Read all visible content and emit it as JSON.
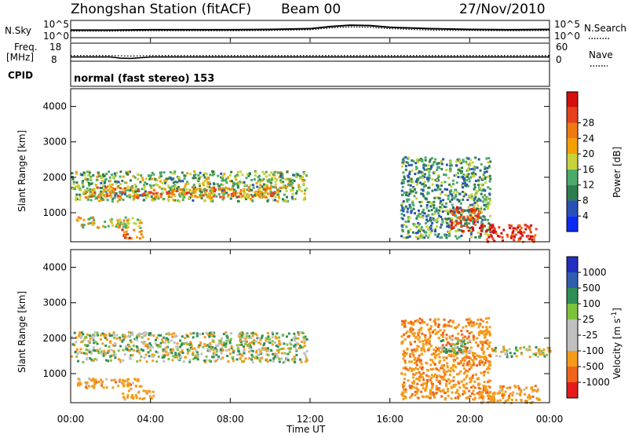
{
  "header": {
    "station_title": "Zhongshan Station (fitACF)",
    "beam": "Beam 00",
    "date": "27/Nov/2010"
  },
  "noise_panel": {
    "left_label": "N.Sky",
    "left_tick_top": "10^5",
    "left_tick_bottom": "10^0",
    "right_label": "N.Search",
    "right_tick_top": "10^5",
    "right_tick_bottom": "10^0"
  },
  "freq_panel": {
    "left_label_line1": "Freq.",
    "left_label_line2": "[MHz]",
    "left_tick_top": "18",
    "left_tick_bottom": "8",
    "right_label": "Nave",
    "right_tick_top": "60",
    "right_tick_bottom": "0"
  },
  "cpid_panel": {
    "label": "CPID",
    "text": "normal (fast stereo) 153"
  },
  "colors": {
    "power_scale": [
      "#0b2bf2",
      "#2a50b8",
      "#2e7d4f",
      "#4caa6a",
      "#c7d33a",
      "#f2a100",
      "#f07a12",
      "#e5411f",
      "#d70e0e"
    ],
    "velocity_scale": [
      "#e51b1b",
      "#f0651c",
      "#f59b1a",
      "#c0c0c0",
      "#c0c0c0",
      "#7ec23c",
      "#2f8f57",
      "#2f5eb0",
      "#1f2fc0"
    ]
  },
  "chart_data": [
    {
      "type": "line",
      "panel": "noise",
      "title": "",
      "x": [
        "00:00",
        "02:00",
        "04:00",
        "06:00",
        "08:00",
        "10:00",
        "12:00",
        "13:00",
        "14:00",
        "15:00",
        "16:00",
        "17:00",
        "18:00",
        "19:00",
        "20:00",
        "22:00",
        "24:00"
      ],
      "series": [
        {
          "name": "N.Sky",
          "values": [
            2.2,
            2.2,
            2.3,
            2.3,
            2.3,
            2.4,
            2.6,
            3.2,
            3.6,
            3.5,
            3.0,
            2.8,
            2.6,
            2.5,
            2.4,
            2.3,
            2.4
          ]
        },
        {
          "name": "N.Search",
          "values": [
            1.9,
            1.9,
            2.0,
            2.0,
            2.0,
            2.1,
            2.3,
            2.8,
            3.1,
            3.0,
            2.6,
            2.4,
            2.2,
            2.1,
            2.1,
            2.0,
            2.1
          ]
        }
      ],
      "ylim": [
        0,
        5
      ],
      "yscale": "log"
    },
    {
      "type": "line",
      "panel": "frequency",
      "x": [
        "00:00",
        "02:00",
        "02:30",
        "03:00",
        "04:00",
        "08:00",
        "12:00",
        "16:00",
        "20:00",
        "24:00"
      ],
      "series": [
        {
          "name": "Freq.",
          "values": [
            10.1,
            10.1,
            9.4,
            9.2,
            10.1,
            10.1,
            10.1,
            10.1,
            10.1,
            10.1
          ]
        },
        {
          "name": "Nave",
          "values": [
            18,
            18,
            17,
            16,
            18,
            18,
            18,
            18,
            18,
            18
          ]
        }
      ],
      "ylim": [
        8,
        18
      ],
      "y2lim": [
        0,
        60
      ]
    },
    {
      "type": "heatmap",
      "panel": "power",
      "xlabel": "",
      "ylabel": "Slant Range [km]",
      "yticks": [
        "1000",
        "2000",
        "3000",
        "4000"
      ],
      "ylim": [
        180,
        4500
      ],
      "colorbar_label": "Power [dB]",
      "colorbar_ticks": [
        "4",
        "8",
        "12",
        "16",
        "20",
        "24",
        "28"
      ],
      "clim": [
        0,
        30
      ],
      "regions": [
        {
          "t0": 0.0,
          "t1": 11.8,
          "r0": 1350,
          "r1": 2200,
          "db": 12
        },
        {
          "t0": 0.3,
          "t1": 10.5,
          "r0": 1450,
          "r1": 1750,
          "db": 20
        },
        {
          "t0": 0.2,
          "t1": 3.5,
          "r0": 600,
          "r1": 900,
          "db": 16
        },
        {
          "t0": 2.5,
          "t1": 3.6,
          "r0": 300,
          "r1": 550,
          "db": 22
        },
        {
          "t0": 16.5,
          "t1": 21.0,
          "r0": 300,
          "r1": 2600,
          "db": 10
        },
        {
          "t0": 19.0,
          "t1": 20.5,
          "r0": 500,
          "r1": 1200,
          "db": 26
        },
        {
          "t0": 20.5,
          "t1": 23.3,
          "r0": 200,
          "r1": 700,
          "db": 28
        }
      ]
    },
    {
      "type": "heatmap",
      "panel": "velocity",
      "xlabel": "Time UT",
      "xticks": [
        "00:00",
        "04:00",
        "08:00",
        "12:00",
        "16:00",
        "20:00",
        "00:00"
      ],
      "ylabel": "Slant Range [km]",
      "yticks": [
        "1000",
        "2000",
        "3000",
        "4000"
      ],
      "ylim": [
        180,
        4500
      ],
      "colorbar_label": "Velocity [m s^-1]",
      "colorbar_ticks": [
        "1000",
        "500",
        "100",
        "25",
        "-25",
        "-100",
        "-500",
        "-1000"
      ],
      "clim": [
        -1000,
        1000
      ],
      "regions": [
        {
          "t0": 0.0,
          "t1": 11.8,
          "r0": 1350,
          "r1": 2200,
          "v": 0
        },
        {
          "t0": 0.3,
          "t1": 3.5,
          "r0": 600,
          "r1": 900,
          "v": -300
        },
        {
          "t0": 2.5,
          "t1": 4.2,
          "r0": 300,
          "r1": 550,
          "v": -200
        },
        {
          "t0": 16.5,
          "t1": 21.0,
          "r0": 300,
          "r1": 2600,
          "v": -400
        },
        {
          "t0": 18.5,
          "t1": 20.0,
          "r0": 1600,
          "r1": 2000,
          "v": 150
        },
        {
          "t0": 20.5,
          "t1": 23.5,
          "r0": 200,
          "r1": 700,
          "v": -300
        },
        {
          "t0": 21.0,
          "t1": 24.0,
          "r0": 1500,
          "r1": 1800,
          "v": 0
        }
      ]
    }
  ]
}
